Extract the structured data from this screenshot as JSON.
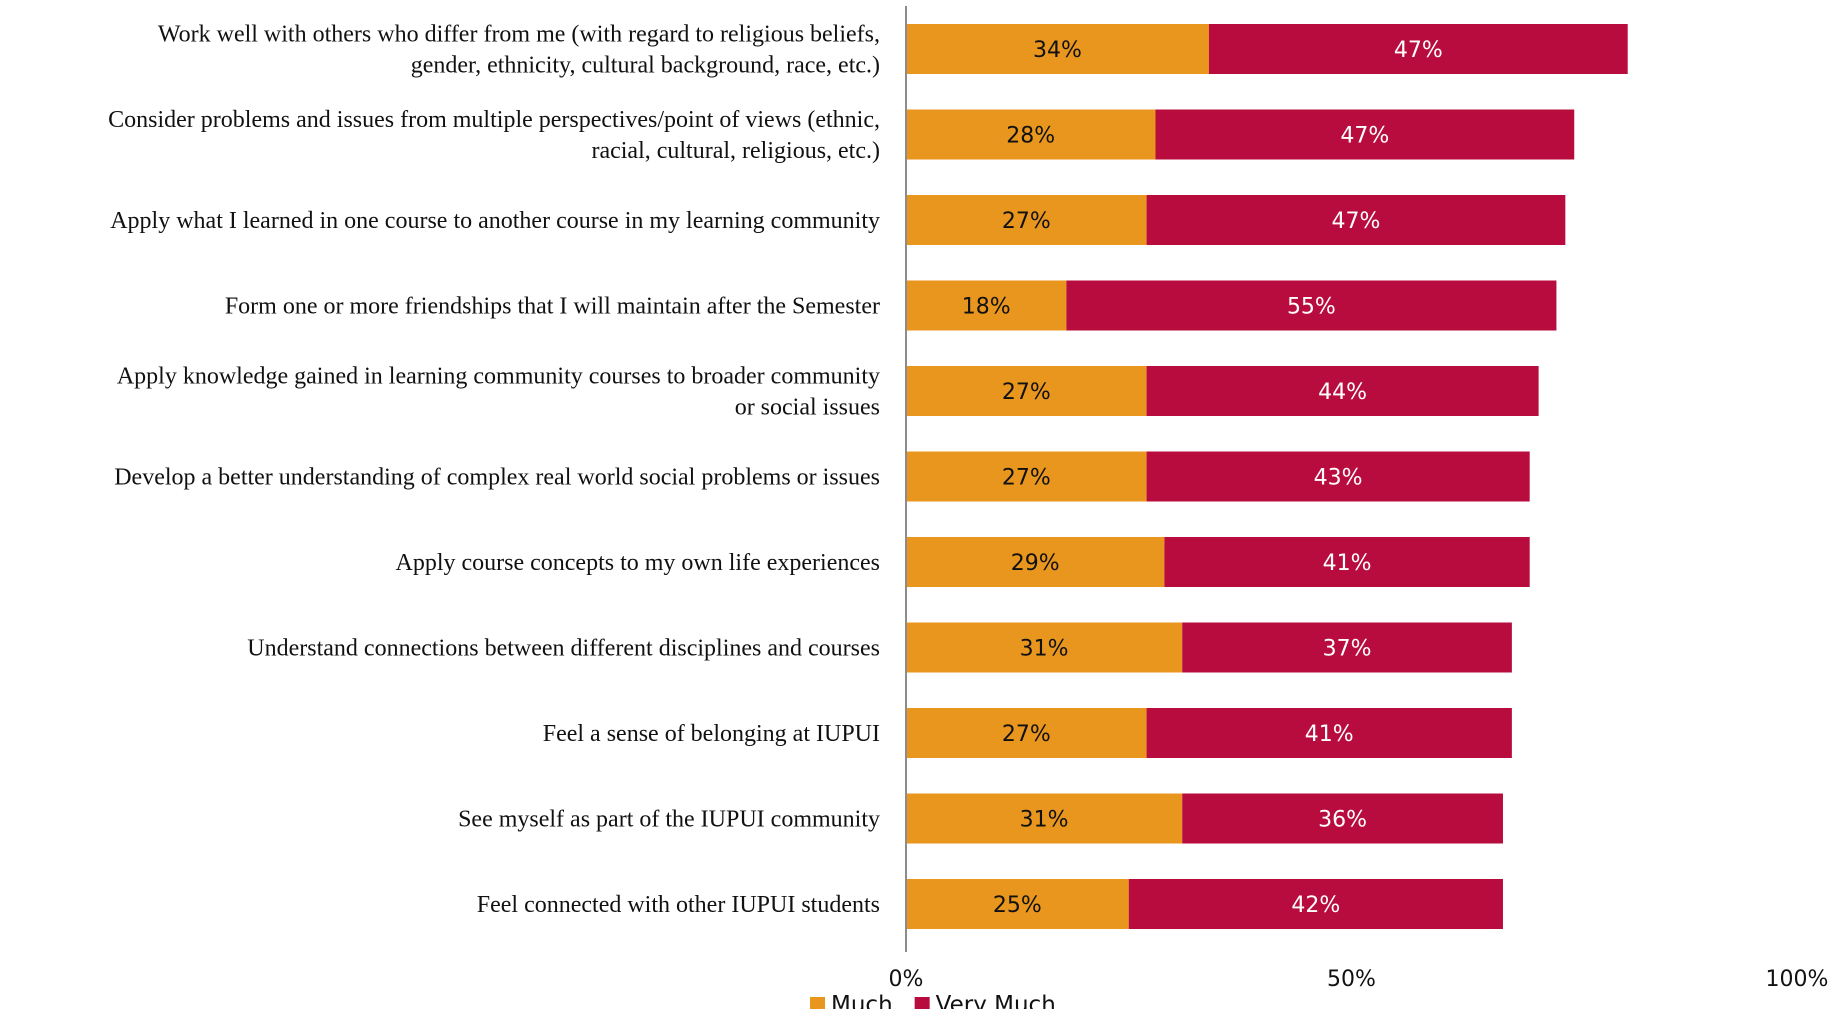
{
  "chart_data": {
    "type": "bar",
    "orientation": "horizontal",
    "stacked": true,
    "categories": [
      "Work well with others who differ from me (with regard to religious beliefs, gender, ethnicity, cultural background, race, etc.)",
      "Consider problems and issues from multiple perspectives/point of views (ethnic, racial, cultural, religious, etc.)",
      "Apply what I learned in one course to another course in my learning community",
      "Form one or more friendships that I will maintain after the Semester",
      "Apply knowledge gained in learning community courses to broader community or social issues",
      "Develop a better understanding of complex real world social problems or issues",
      "Apply course concepts to my own life experiences",
      "Understand connections between different disciplines and courses",
      "Feel a sense of belonging at IUPUI",
      "See myself as part of the IUPUI community",
      "Feel connected with other IUPUI students"
    ],
    "category_lines": [
      [
        "Work well with others who differ from me (with regard to religious beliefs,",
        "gender, ethnicity, cultural background, race, etc.)"
      ],
      [
        "Consider problems and issues from multiple perspectives/point of views (ethnic,",
        "racial, cultural, religious, etc.)"
      ],
      [
        "Apply what I learned in one course to another course in my learning community"
      ],
      [
        "Form one or more friendships that I will maintain after the Semester"
      ],
      [
        "Apply knowledge gained in learning community courses to broader community",
        "or social issues"
      ],
      [
        "Develop a better understanding of complex real world social problems or issues"
      ],
      [
        "Apply course concepts to my own life experiences"
      ],
      [
        "Understand connections between different disciplines and courses"
      ],
      [
        "Feel a sense of belonging at IUPUI"
      ],
      [
        "See myself as part of the IUPUI community"
      ],
      [
        "Feel connected with other IUPUI students"
      ]
    ],
    "series": [
      {
        "name": "Much",
        "color": "#E8961E",
        "label_color": "#111111",
        "values": [
          34,
          28,
          27,
          18,
          27,
          27,
          29,
          31,
          27,
          31,
          25
        ],
        "labels": [
          "34%",
          "28%",
          "27%",
          "18%",
          "27%",
          "27%",
          "29%",
          "31%",
          "27%",
          "31%",
          "25%"
        ]
      },
      {
        "name": "Very Much",
        "color": "#B90C3E",
        "label_color": "#ffffff",
        "values": [
          47,
          47,
          47,
          55,
          44,
          43,
          41,
          37,
          41,
          36,
          42
        ],
        "labels": [
          "47%",
          "47%",
          "47%",
          "55%",
          "44%",
          "43%",
          "41%",
          "37%",
          "41%",
          "36%",
          "42%"
        ]
      }
    ],
    "xlim": [
      0,
      100
    ],
    "x_ticks": [
      0,
      50,
      100
    ],
    "x_tick_labels": [
      "0%",
      "50%",
      "100%"
    ],
    "grid": false,
    "legend": "bottom-center",
    "xlabel": "",
    "ylabel": "",
    "title": ""
  }
}
